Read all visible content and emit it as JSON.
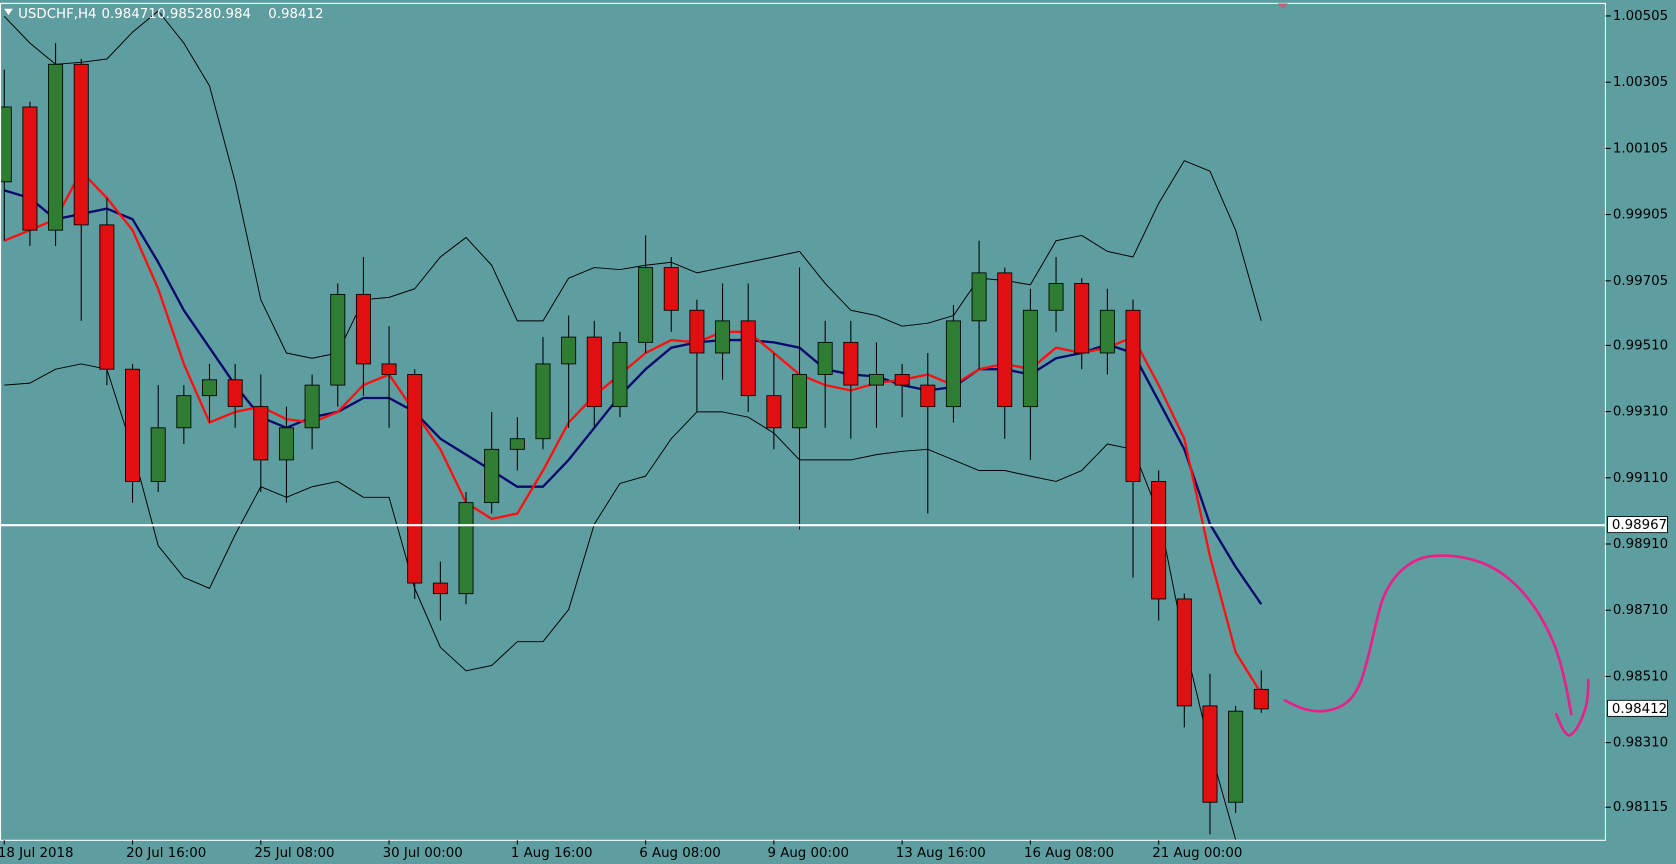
{
  "chart_data": {
    "type": "candlestick",
    "symbol": "USDCHF,H4",
    "up_color": "#2e7d32",
    "down_color": "#e01010",
    "wick_color": "#000000",
    "background": "#5f9ea0",
    "grid": false,
    "ylim": [
      0.98015,
      1.00543
    ],
    "yticks": [
      1.00505,
      1.00305,
      1.00105,
      0.99905,
      0.99705,
      {
        "value": 0.9951,
        "label": "0.99510"
      },
      {
        "value": 0.9931,
        "label": "0.99310"
      },
      {
        "value": 0.9911,
        "label": "0.99110"
      },
      {
        "value": 0.9891,
        "label": "0.98910"
      },
      {
        "value": 0.9871,
        "label": "0.98710"
      },
      {
        "value": 0.9851,
        "label": "0.98510"
      },
      {
        "value": 0.9831,
        "label": "0.98310"
      },
      0.98115
    ],
    "categories": [
      "18 Jul 2018",
      null,
      null,
      null,
      null,
      "20 Jul 16:00",
      null,
      null,
      null,
      null,
      "25 Jul 08:00",
      null,
      null,
      null,
      null,
      "30 Jul 00:00",
      null,
      null,
      null,
      null,
      "1 Aug 16:00",
      null,
      null,
      null,
      null,
      "6 Aug 08:00",
      null,
      null,
      null,
      null,
      "9 Aug 00:00",
      null,
      null,
      null,
      null,
      "13 Aug 16:00",
      null,
      null,
      null,
      null,
      "16 Aug 08:00",
      null,
      null,
      null,
      null,
      "21 Aug 00:00",
      null,
      null,
      null,
      null
    ],
    "candles": [
      [
        1.00004,
        1.00343,
        0.99826,
        1.0023
      ],
      [
        1.0023,
        1.00246,
        0.9981,
        0.99858
      ],
      [
        0.99858,
        1.00423,
        0.9981,
        1.00359
      ],
      [
        1.00359,
        1.00375,
        0.99584,
        0.99874
      ],
      [
        0.99874,
        0.99955,
        0.9939,
        0.99438
      ],
      [
        0.99438,
        0.99454,
        0.99035,
        0.99099
      ],
      [
        0.99099,
        0.9939,
        0.99067,
        0.99261
      ],
      [
        0.99261,
        0.9939,
        0.99212,
        0.99358
      ],
      [
        0.99358,
        0.99454,
        0.99277,
        0.99406
      ],
      [
        0.99406,
        0.99454,
        0.99261,
        0.99325
      ],
      [
        0.99325,
        0.99422,
        0.99067,
        0.99164
      ],
      [
        0.99164,
        0.99325,
        0.99035,
        0.99261
      ],
      [
        0.99261,
        0.99422,
        0.99196,
        0.9939
      ],
      [
        0.9939,
        0.99697,
        0.99325,
        0.99664
      ],
      [
        0.99664,
        0.99777,
        0.99358,
        0.99454
      ],
      [
        0.99454,
        0.99568,
        0.99261,
        0.99422
      ],
      [
        0.99422,
        0.99438,
        0.98744,
        0.98792
      ],
      [
        0.98792,
        0.98857,
        0.98679,
        0.9876
      ],
      [
        0.9876,
        0.99067,
        0.98728,
        0.99035
      ],
      [
        0.99035,
        0.99309,
        0.99002,
        0.99196
      ],
      [
        0.99196,
        0.99293,
        0.99132,
        0.99228
      ],
      [
        0.99228,
        0.99535,
        0.99196,
        0.99454
      ],
      [
        0.99454,
        0.996,
        0.99261,
        0.99535
      ],
      [
        0.99535,
        0.99584,
        0.99261,
        0.99325
      ],
      [
        0.99325,
        0.99551,
        0.99293,
        0.99519
      ],
      [
        0.99519,
        0.99842,
        0.99487,
        0.99745
      ],
      [
        0.99745,
        0.99777,
        0.99551,
        0.99616
      ],
      [
        0.99616,
        0.99648,
        0.99309,
        0.99487
      ],
      [
        0.99487,
        0.99697,
        0.99406,
        0.99584
      ],
      [
        0.99584,
        0.99697,
        0.99309,
        0.99358
      ],
      [
        0.99358,
        0.99487,
        0.99196,
        0.99261
      ],
      [
        0.99261,
        0.99745,
        0.98954,
        0.99422
      ],
      [
        0.99422,
        0.99584,
        0.99261,
        0.99519
      ],
      [
        0.99519,
        0.99584,
        0.99228,
        0.9939
      ],
      [
        0.9939,
        0.99519,
        0.99261,
        0.99422
      ],
      [
        0.99422,
        0.99454,
        0.99293,
        0.9939
      ],
      [
        0.9939,
        0.99487,
        0.99002,
        0.99325
      ],
      [
        0.99325,
        0.99632,
        0.99277,
        0.99584
      ],
      [
        0.99584,
        0.99826,
        0.99438,
        0.99729
      ],
      [
        0.99729,
        0.99745,
        0.99228,
        0.99325
      ],
      [
        0.99325,
        0.99681,
        0.99164,
        0.99616
      ],
      [
        0.99616,
        0.99777,
        0.99551,
        0.99697
      ],
      [
        0.99697,
        0.99713,
        0.99438,
        0.99487
      ],
      [
        0.99487,
        0.99681,
        0.99422,
        0.99616
      ],
      [
        0.99616,
        0.99648,
        0.98809,
        0.99099
      ],
      [
        0.99099,
        0.99132,
        0.98679,
        0.98744
      ],
      [
        0.98744,
        0.9876,
        0.98356,
        0.98421
      ],
      [
        0.98421,
        0.98518,
        0.98033,
        0.9813
      ],
      [
        0.9813,
        0.98421,
        0.98098,
        0.98405
      ],
      [
        0.98471,
        0.98528,
        0.984,
        0.98412
      ]
    ],
    "lines": [
      {
        "color": "#000000",
        "width": 0.9,
        "values": [
          1.00504,
          1.00423,
          1.00359,
          1.00365,
          1.00375,
          1.00456,
          1.0052,
          1.00423,
          1.00294,
          1.00004,
          0.99648,
          0.99487,
          0.99471,
          0.99487,
          0.99648,
          0.99655,
          0.99681,
          0.99777,
          0.99836,
          0.99752,
          0.99584,
          0.99584,
          0.99713,
          0.99745,
          0.99739,
          0.99752,
          0.99761,
          0.99729,
          0.99745,
          0.99761,
          0.99777,
          0.99794,
          0.99697,
          0.99616,
          0.996,
          0.99568,
          0.99577,
          0.996,
          0.99713,
          0.99706,
          0.99693,
          0.99826,
          0.99842,
          0.99794,
          0.99777,
          0.99939,
          1.00068,
          1.00036,
          0.99858,
          0.99584
        ]
      },
      {
        "color": "#000000",
        "width": 0.9,
        "values": [
          0.9939,
          0.99396,
          0.99438,
          0.99454,
          0.99438,
          0.99196,
          0.98905,
          0.98809,
          0.98776,
          0.98938,
          0.99083,
          0.99051,
          0.99083,
          0.99099,
          0.99051,
          0.99051,
          0.98776,
          0.98598,
          0.98527,
          0.98543,
          0.98615,
          0.98615,
          0.98712,
          0.9897,
          0.99093,
          0.99115,
          0.99228,
          0.99309,
          0.99309,
          0.99293,
          0.99245,
          0.99164,
          0.99164,
          0.99164,
          0.9918,
          0.9919,
          0.99196,
          0.99164,
          0.99132,
          0.99132,
          0.99115,
          0.99099,
          0.99132,
          0.99212,
          0.99196,
          0.99002,
          0.98615,
          0.98292,
          0.98017,
          null
        ]
      },
      {
        "color": "#0a0a6e",
        "width": 2.2,
        "values": [
          0.99978,
          0.99955,
          0.99891,
          0.99907,
          0.99923,
          0.99891,
          0.99761,
          0.99616,
          0.99503,
          0.9939,
          0.99293,
          0.99261,
          0.99293,
          0.99309,
          0.99351,
          0.99351,
          0.99309,
          0.99228,
          0.9918,
          0.99132,
          0.99083,
          0.99083,
          0.99164,
          0.99261,
          0.99358,
          0.99438,
          0.99503,
          0.99519,
          0.99526,
          0.99526,
          0.99519,
          0.99503,
          0.99438,
          0.99422,
          0.99416,
          0.9939,
          0.99374,
          0.99384,
          0.99438,
          0.99438,
          0.99422,
          0.99471,
          0.99487,
          0.99513,
          0.99487,
          0.99342,
          0.99196,
          0.9897,
          0.98841,
          0.98728
        ]
      },
      {
        "color": "#ff1010",
        "width": 2.2,
        "values": [
          0.99826,
          0.99858,
          0.99891,
          1.00036,
          0.99955,
          0.99858,
          0.99681,
          0.99454,
          0.99277,
          0.99309,
          0.99325,
          0.99287,
          0.99277,
          0.99309,
          0.9939,
          0.99422,
          0.99309,
          0.99196,
          0.99035,
          0.98986,
          0.99002,
          0.99132,
          0.99277,
          0.99358,
          0.99422,
          0.99487,
          0.99526,
          0.99519,
          0.99551,
          0.99551,
          0.99487,
          0.99422,
          0.9939,
          0.99374,
          0.99396,
          0.99406,
          0.99422,
          0.9939,
          0.99438,
          0.99454,
          0.99438,
          0.99503,
          0.99487,
          0.99503,
          0.99535,
          0.9939,
          0.99228,
          0.98873,
          0.98583,
          0.98458
        ]
      }
    ],
    "hline": {
      "value": 0.98967,
      "color": "#ffffff"
    }
  }
}
